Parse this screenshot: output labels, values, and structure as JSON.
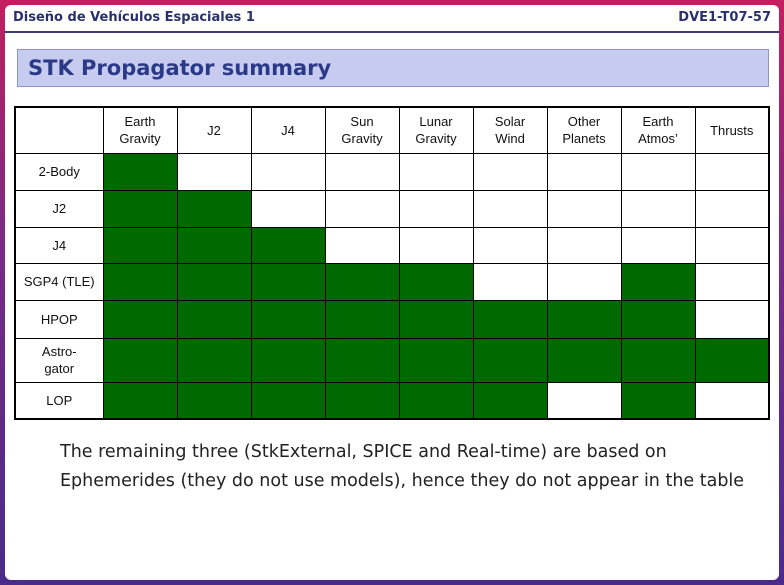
{
  "header": {
    "course": "Diseño  de Vehículos  Espaciales 1",
    "code": "DVE1-T07-57"
  },
  "slide": {
    "title": "STK Propagator summary"
  },
  "table": {
    "columns": [
      {
        "id": "earth_gravity",
        "label": "Earth\nGravity"
      },
      {
        "id": "j2",
        "label": "J2"
      },
      {
        "id": "j4",
        "label": "J4"
      },
      {
        "id": "sun_gravity",
        "label": "Sun\nGravity"
      },
      {
        "id": "lunar_gravity",
        "label": "Lunar\nGravity"
      },
      {
        "id": "solar_wind",
        "label": "Solar\nWind"
      },
      {
        "id": "other_planets",
        "label": "Other\nPlanets"
      },
      {
        "id": "earth_atmos",
        "label": "Earth\nAtmos’"
      },
      {
        "id": "thrusts",
        "label": "Thrusts"
      }
    ],
    "rows": [
      {
        "label": "2-Body",
        "cells": [
          1,
          0,
          0,
          0,
          0,
          0,
          0,
          0,
          0
        ]
      },
      {
        "label": "J2",
        "cells": [
          1,
          1,
          0,
          0,
          0,
          0,
          0,
          0,
          0
        ]
      },
      {
        "label": "J4",
        "cells": [
          1,
          1,
          1,
          0,
          0,
          0,
          0,
          0,
          0
        ]
      },
      {
        "label": "SGP4 (TLE)",
        "cells": [
          1,
          1,
          1,
          1,
          1,
          0,
          0,
          1,
          0
        ]
      },
      {
        "label": "HPOP",
        "cells": [
          1,
          1,
          1,
          1,
          1,
          1,
          1,
          1,
          0
        ]
      },
      {
        "label": "Astro-\ngator",
        "cells": [
          1,
          1,
          1,
          1,
          1,
          1,
          1,
          1,
          1
        ]
      },
      {
        "label": "LOP",
        "cells": [
          1,
          1,
          1,
          1,
          1,
          1,
          0,
          1,
          0
        ]
      }
    ],
    "colors": {
      "filled": "#006a00",
      "empty": "#ffffff"
    }
  },
  "note": "The remaining three (StkExternal, SPICE and Real-time) are based on Ephemerides (they do not use models), hence they do not appear in the table"
}
